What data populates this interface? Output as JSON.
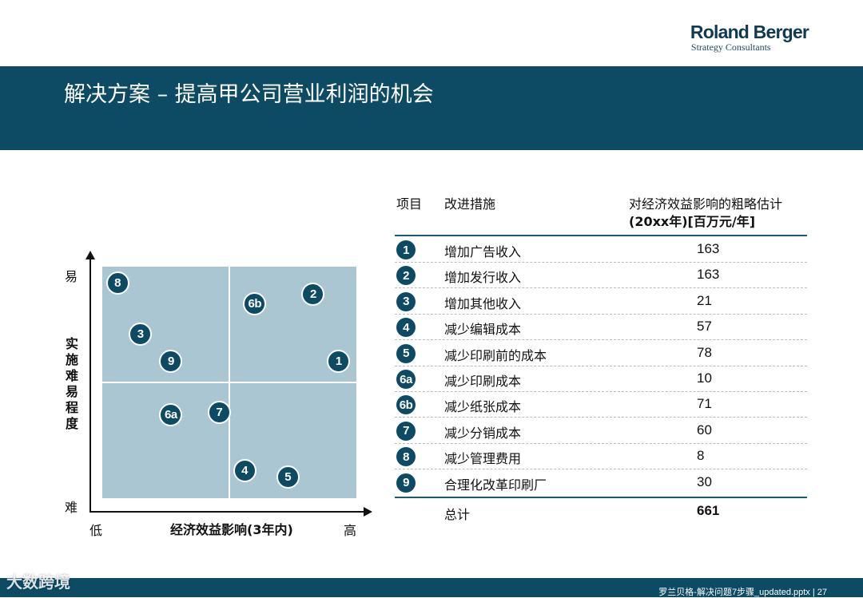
{
  "brand": {
    "name": "Roland Berger",
    "tagline": "Strategy Consultants"
  },
  "slide": {
    "title": "解决方案 – 提高甲公司营业利润的机会"
  },
  "matrix": {
    "y_axis": {
      "label_chars": [
        "实",
        "施",
        "难",
        "易",
        "程",
        "度"
      ],
      "high": "易",
      "low": "难"
    },
    "x_axis": {
      "label": "经济效益影响(3年内)",
      "low": "低",
      "high": "高"
    },
    "points": [
      {
        "id": "8",
        "impact": 0.06,
        "ease": 0.93
      },
      {
        "id": "6b",
        "impact": 0.6,
        "ease": 0.84
      },
      {
        "id": "2",
        "impact": 0.83,
        "ease": 0.88
      },
      {
        "id": "3",
        "impact": 0.15,
        "ease": 0.71
      },
      {
        "id": "9",
        "impact": 0.27,
        "ease": 0.59
      },
      {
        "id": "1",
        "impact": 0.93,
        "ease": 0.59
      },
      {
        "id": "6a",
        "impact": 0.27,
        "ease": 0.36
      },
      {
        "id": "7",
        "impact": 0.46,
        "ease": 0.37
      },
      {
        "id": "4",
        "impact": 0.56,
        "ease": 0.12
      },
      {
        "id": "5",
        "impact": 0.73,
        "ease": 0.09
      }
    ]
  },
  "table": {
    "headers": {
      "item": "项目",
      "measure": "改进措施",
      "impact_line1": "对经济效益影响的粗略估计",
      "impact_line2": "(20xx年)[百万元/年]"
    },
    "rows": [
      {
        "id": "1",
        "measure": "增加广告收入",
        "value": "163"
      },
      {
        "id": "2",
        "measure": "增加发行收入",
        "value": "163"
      },
      {
        "id": "3",
        "measure": "增加其他收入",
        "value": "21"
      },
      {
        "id": "4",
        "measure": "减少编辑成本",
        "value": "57"
      },
      {
        "id": "5",
        "measure": "减少印刷前的成本",
        "value": "78"
      },
      {
        "id": "6a",
        "measure": "减少印刷成本",
        "value": "10"
      },
      {
        "id": "6b",
        "measure": "减少纸张成本",
        "value": "71"
      },
      {
        "id": "7",
        "measure": "减少分销成本",
        "value": "60"
      },
      {
        "id": "8",
        "measure": "减少管理费用",
        "value": "8"
      },
      {
        "id": "9",
        "measure": "合理化改革印刷厂",
        "value": "30"
      }
    ],
    "total": {
      "label": "总计",
      "value": "661"
    }
  },
  "footer": {
    "text": "罗兰贝格-解决问题7步骤_updated.pptx  |  27"
  },
  "watermark": {
    "text": "大数跨境"
  },
  "colors": {
    "brand_dark": "#0d4a63",
    "quadrant_fill": "#aac6d3"
  }
}
